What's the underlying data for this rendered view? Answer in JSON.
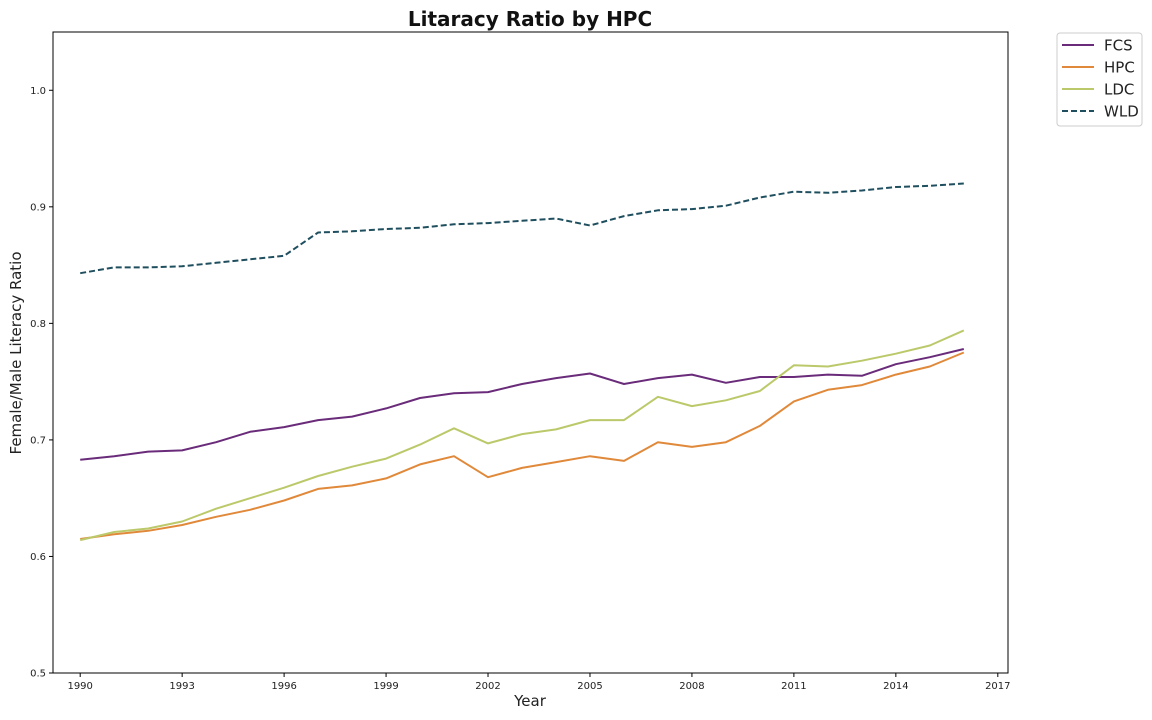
{
  "chart_data": {
    "type": "line",
    "title": "Litaracy Ratio by HPC",
    "xlabel": "Year",
    "ylabel": "Female/Male Literacy Ratio",
    "xlim": [
      1989.2,
      2017.3
    ],
    "ylim": [
      0.5,
      1.05
    ],
    "x_ticks": [
      1990,
      1993,
      1996,
      1999,
      2002,
      2005,
      2008,
      2011,
      2014,
      2017
    ],
    "y_ticks": [
      0.5,
      0.6,
      0.7,
      0.8,
      0.9,
      1.0
    ],
    "grid": false,
    "legend_position": "outside-top-right",
    "x": [
      1990,
      1991,
      1992,
      1993,
      1994,
      1995,
      1996,
      1997,
      1998,
      1999,
      2000,
      2001,
      2002,
      2003,
      2004,
      2005,
      2006,
      2007,
      2008,
      2009,
      2010,
      2011,
      2012,
      2013,
      2014,
      2015,
      2016
    ],
    "series": [
      {
        "name": "FCS",
        "color": "#6a2c7a",
        "style": "solid",
        "values": [
          0.683,
          0.686,
          0.69,
          0.691,
          0.698,
          0.707,
          0.711,
          0.717,
          0.72,
          0.727,
          0.736,
          0.74,
          0.741,
          0.748,
          0.753,
          0.757,
          0.748,
          0.753,
          0.756,
          0.749,
          0.754,
          0.754,
          0.756,
          0.755,
          0.765,
          0.771,
          0.778
        ]
      },
      {
        "name": "HPC",
        "color": "#e0893a",
        "style": "solid",
        "values": [
          0.615,
          0.619,
          0.622,
          0.627,
          0.634,
          0.64,
          0.648,
          0.658,
          0.661,
          0.667,
          0.679,
          0.686,
          0.668,
          0.676,
          0.681,
          0.686,
          0.682,
          0.698,
          0.694,
          0.698,
          0.712,
          0.733,
          0.743,
          0.747,
          0.756,
          0.763,
          0.775
        ]
      },
      {
        "name": "LDC",
        "color": "#bcc96a",
        "style": "solid",
        "values": [
          0.614,
          0.621,
          0.624,
          0.63,
          0.641,
          0.65,
          0.659,
          0.669,
          0.677,
          0.684,
          0.696,
          0.71,
          0.697,
          0.705,
          0.709,
          0.717,
          0.717,
          0.737,
          0.729,
          0.734,
          0.742,
          0.764,
          0.763,
          0.768,
          0.774,
          0.781,
          0.794
        ]
      },
      {
        "name": "WLD",
        "color": "#1f4f5f",
        "style": "dashed",
        "values": [
          0.843,
          0.848,
          0.848,
          0.849,
          0.852,
          0.855,
          0.858,
          0.878,
          0.879,
          0.881,
          0.882,
          0.885,
          0.886,
          0.888,
          0.89,
          0.884,
          0.892,
          0.897,
          0.898,
          0.901,
          0.908,
          0.913,
          0.912,
          0.914,
          0.917,
          0.918,
          0.92
        ]
      }
    ]
  }
}
